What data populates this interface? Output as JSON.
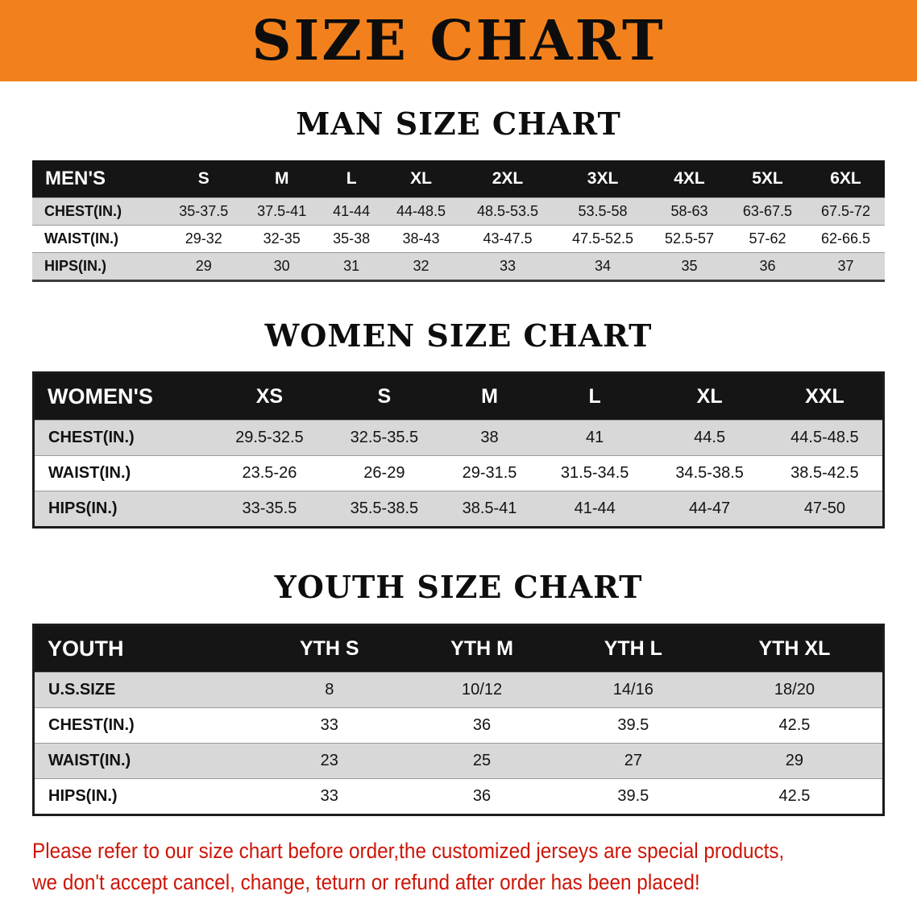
{
  "banner": {
    "title": "SIZE CHART"
  },
  "sections": [
    {
      "heading": "MAN SIZE CHART",
      "table": {
        "header": [
          "MEN'S",
          "S",
          "M",
          "L",
          "XL",
          "2XL",
          "3XL",
          "4XL",
          "5XL",
          "6XL"
        ],
        "rows": [
          [
            "CHEST(IN.)",
            "35-37.5",
            "37.5-41",
            "41-44",
            "44-48.5",
            "48.5-53.5",
            "53.5-58",
            "58-63",
            "63-67.5",
            "67.5-72"
          ],
          [
            "WAIST(IN.)",
            "29-32",
            "32-35",
            "35-38",
            "38-43",
            "43-47.5",
            "47.5-52.5",
            "52.5-57",
            "57-62",
            "62-66.5"
          ],
          [
            "HIPS(IN.)",
            "29",
            "30",
            "31",
            "32",
            "33",
            "34",
            "35",
            "36",
            "37"
          ]
        ]
      }
    },
    {
      "heading": "WOMEN SIZE CHART",
      "table": {
        "header": [
          "WOMEN'S",
          "XS",
          "S",
          "M",
          "L",
          "XL",
          "XXL"
        ],
        "rows": [
          [
            "CHEST(IN.)",
            "29.5-32.5",
            "32.5-35.5",
            "38",
            "41",
            "44.5",
            "44.5-48.5"
          ],
          [
            "WAIST(IN.)",
            "23.5-26",
            "26-29",
            "29-31.5",
            "31.5-34.5",
            "34.5-38.5",
            "38.5-42.5"
          ],
          [
            "HIPS(IN.)",
            "33-35.5",
            "35.5-38.5",
            "38.5-41",
            "41-44",
            "44-47",
            "47-50"
          ]
        ]
      }
    },
    {
      "heading": "YOUTH SIZE CHART",
      "table": {
        "header": [
          "YOUTH",
          "YTH S",
          "YTH M",
          "YTH L",
          "YTH XL"
        ],
        "rows": [
          [
            "U.S.SIZE",
            "8",
            "10/12",
            "14/16",
            "18/20"
          ],
          [
            "CHEST(IN.)",
            "33",
            "36",
            "39.5",
            "42.5"
          ],
          [
            "WAIST(IN.)",
            "23",
            "25",
            "27",
            "29"
          ],
          [
            "HIPS(IN.)",
            "33",
            "36",
            "39.5",
            "42.5"
          ]
        ]
      }
    }
  ],
  "disclaimer": {
    "line1": "Please refer to our size chart before order,the customized jerseys are special products,",
    "line2": "we don't accept cancel, change, teturn or refund after order has been placed!"
  },
  "colors": {
    "banner_background": "#f2811d",
    "table_header_background": "#151515",
    "striped_row_background": "#d8d8d8",
    "disclaimer_text": "#cd1508"
  }
}
